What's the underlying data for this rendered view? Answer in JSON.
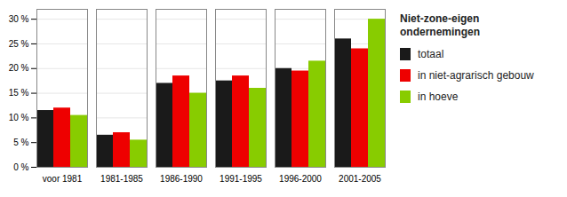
{
  "chart_data": {
    "type": "bar",
    "categories": [
      "voor 1981",
      "1981-1985",
      "1986-1990",
      "1991-1995",
      "1996-2000",
      "2001-2005"
    ],
    "series": [
      {
        "name": "totaal",
        "color": "#1a1a1a",
        "values": [
          11.5,
          6.5,
          17.0,
          17.5,
          20.0,
          26.0
        ]
      },
      {
        "name": "in niet-agrarisch gebouw",
        "color": "#ee0000",
        "values": [
          12.0,
          7.0,
          18.5,
          18.5,
          19.5,
          24.0
        ]
      },
      {
        "name": "in hoeve",
        "color": "#88cc00",
        "values": [
          10.5,
          5.5,
          15.0,
          16.0,
          21.5,
          30.0
        ]
      }
    ],
    "ylim": [
      0,
      32
    ],
    "yticks": [
      {
        "value": 0,
        "label": "0 %"
      },
      {
        "value": 5,
        "label": "5 %"
      },
      {
        "value": 10,
        "label": "10 %"
      },
      {
        "value": 15,
        "label": "15 %"
      },
      {
        "value": 20,
        "label": "20 %"
      },
      {
        "value": 25,
        "label": "25 %"
      },
      {
        "value": 30,
        "label": "30 %"
      }
    ],
    "grid": true,
    "legend": "right",
    "legend_title": [
      "Niet-zone-eigen",
      "ondernemingen"
    ]
  }
}
